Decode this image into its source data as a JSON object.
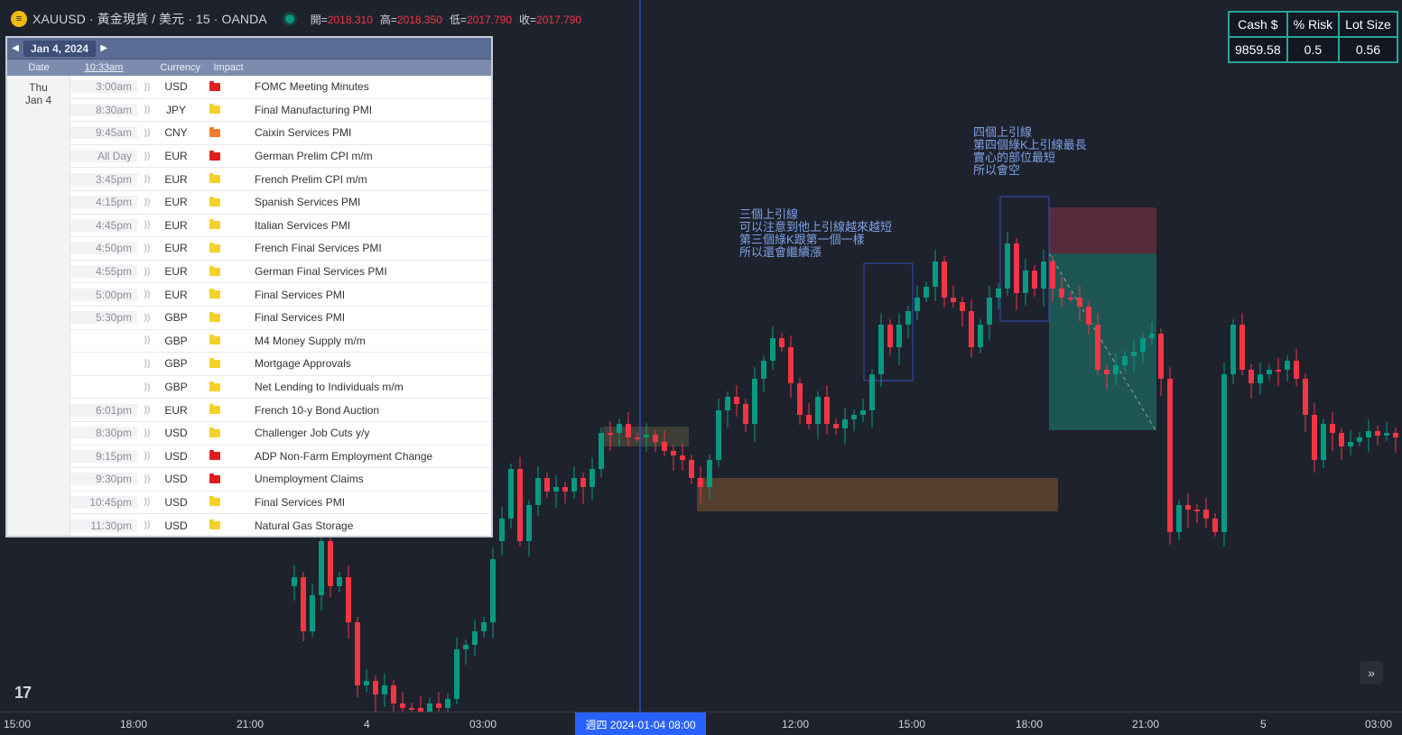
{
  "header": {
    "symbol_icon": "gold-coin-icon",
    "title": "XAUUSD · 黃金現貨 / 美元 · 15 · OANDA",
    "ohlc": [
      {
        "label": "開=",
        "value": "2018.310"
      },
      {
        "label": "高=",
        "value": "2018.350"
      },
      {
        "label": "低=",
        "value": "2017.790"
      },
      {
        "label": "收=",
        "value": "2017.790"
      }
    ]
  },
  "risk_table": {
    "headers": [
      "Cash $",
      "% Risk",
      "Lot Size"
    ],
    "values": [
      "9859.58",
      "0.5",
      "0.56"
    ]
  },
  "calendar": {
    "date_label": "Jan 4, 2024",
    "columns": {
      "date": "Date",
      "time": "10:33am",
      "currency": "Currency",
      "impact": "Impact"
    },
    "day": {
      "dow": "Thu",
      "date": "Jan 4"
    },
    "events": [
      {
        "time": "3:00am",
        "currency": "USD",
        "impact": "high",
        "name": "FOMC Meeting Minutes"
      },
      {
        "time": "8:30am",
        "currency": "JPY",
        "impact": "low",
        "name": "Final Manufacturing PMI"
      },
      {
        "time": "9:45am",
        "currency": "CNY",
        "impact": "medium",
        "name": "Caixin Services PMI"
      },
      {
        "time": "All Day",
        "currency": "EUR",
        "impact": "high",
        "name": "German Prelim CPI m/m"
      },
      {
        "time": "3:45pm",
        "currency": "EUR",
        "impact": "low",
        "name": "French Prelim CPI m/m"
      },
      {
        "time": "4:15pm",
        "currency": "EUR",
        "impact": "low",
        "name": "Spanish Services PMI"
      },
      {
        "time": "4:45pm",
        "currency": "EUR",
        "impact": "low",
        "name": "Italian Services PMI"
      },
      {
        "time": "4:50pm",
        "currency": "EUR",
        "impact": "low",
        "name": "French Final Services PMI"
      },
      {
        "time": "4:55pm",
        "currency": "EUR",
        "impact": "low",
        "name": "German Final Services PMI"
      },
      {
        "time": "5:00pm",
        "currency": "EUR",
        "impact": "low",
        "name": "Final Services PMI"
      },
      {
        "time": "5:30pm",
        "currency": "GBP",
        "impact": "low",
        "name": "Final Services PMI"
      },
      {
        "time": "",
        "currency": "GBP",
        "impact": "low",
        "name": "M4 Money Supply m/m"
      },
      {
        "time": "",
        "currency": "GBP",
        "impact": "low",
        "name": "Mortgage Approvals"
      },
      {
        "time": "",
        "currency": "GBP",
        "impact": "low",
        "name": "Net Lending to Individuals m/m"
      },
      {
        "time": "6:01pm",
        "currency": "EUR",
        "impact": "low",
        "name": "French 10-y Bond Auction"
      },
      {
        "time": "8:30pm",
        "currency": "USD",
        "impact": "low",
        "name": "Challenger Job Cuts y/y"
      },
      {
        "time": "9:15pm",
        "currency": "USD",
        "impact": "high",
        "name": "ADP Non-Farm Employment Change"
      },
      {
        "time": "9:30pm",
        "currency": "USD",
        "impact": "high",
        "name": "Unemployment Claims"
      },
      {
        "time": "10:45pm",
        "currency": "USD",
        "impact": "low",
        "name": "Final Services PMI"
      },
      {
        "time": "11:30pm",
        "currency": "USD",
        "impact": "low",
        "name": "Natural Gas Storage"
      }
    ]
  },
  "annotations": {
    "note1": "三個上引線\n可以注意到他上引線越來越短\n第三個綠K跟第一個一樣\n所以還會繼續漲",
    "note2": "四個上引線\n第四個綠K上引線最長\n實心的部位最短\n所以會空"
  },
  "x_axis": {
    "ticks": [
      "15:00",
      "18:00",
      "21:00",
      "4",
      "03:00",
      "12:00",
      "15:00",
      "18:00",
      "21:00",
      "5",
      "03:00"
    ],
    "crosshair_label": "週四 2024-01-04   08:00"
  },
  "colors": {
    "background": "#1e222d",
    "up": "#089981",
    "down": "#f23645",
    "crosshair": "#2962ff",
    "accent": "#26a69a"
  },
  "icons": {
    "logo": "tradingview-logo-icon",
    "scroll": "double-chevron-right-icon"
  },
  "footer": {
    "logo_text": "17",
    "scroll_text": "»"
  }
}
